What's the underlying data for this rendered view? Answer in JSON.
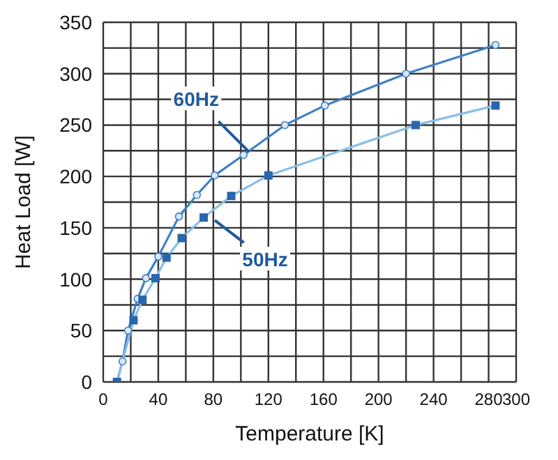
{
  "chart_data": {
    "type": "line",
    "xlabel": "Temperature [K]",
    "ylabel": "Heat Load [W]",
    "xlim": [
      0,
      300
    ],
    "xticks": [
      0,
      {
        "value": 20,
        "label": null
      },
      40,
      {
        "value": 60,
        "label": null
      },
      80,
      {
        "value": 100,
        "label": null
      },
      120,
      {
        "value": 140,
        "label": null
      },
      160,
      {
        "value": 180,
        "label": null
      },
      200,
      {
        "value": 220,
        "label": null
      },
      240,
      {
        "value": 260,
        "label": null
      },
      280,
      300
    ],
    "ylim": [
      0,
      350
    ],
    "yticks": [
      0,
      {
        "value": 25,
        "label": null
      },
      50,
      {
        "value": 75,
        "label": null
      },
      100,
      {
        "value": 125,
        "label": null
      },
      150,
      {
        "value": 175,
        "label": null
      },
      200,
      {
        "value": 225,
        "label": null
      },
      250,
      {
        "value": 275,
        "label": null
      },
      300,
      {
        "value": 325,
        "label": null
      },
      350
    ],
    "grid": true,
    "line_style": "solid",
    "series": [
      {
        "name": "60Hz",
        "color": "#3f80c6",
        "marker": "circle",
        "x": [
          10,
          14,
          18,
          25,
          31,
          40,
          55,
          68,
          81,
          102,
          132,
          161,
          220,
          285
        ],
        "values": [
          0,
          20,
          50,
          81,
          101,
          122,
          161,
          182,
          201,
          221,
          250,
          269,
          300,
          328
        ]
      },
      {
        "name": "50Hz",
        "color": "#86bfe8",
        "marker": "square",
        "x": [
          10,
          22,
          28.5,
          38,
          46,
          57,
          73,
          93,
          120,
          227,
          285
        ],
        "values": [
          0,
          60,
          80,
          101,
          121,
          140,
          160,
          181,
          201,
          250,
          269
        ]
      }
    ]
  }
}
